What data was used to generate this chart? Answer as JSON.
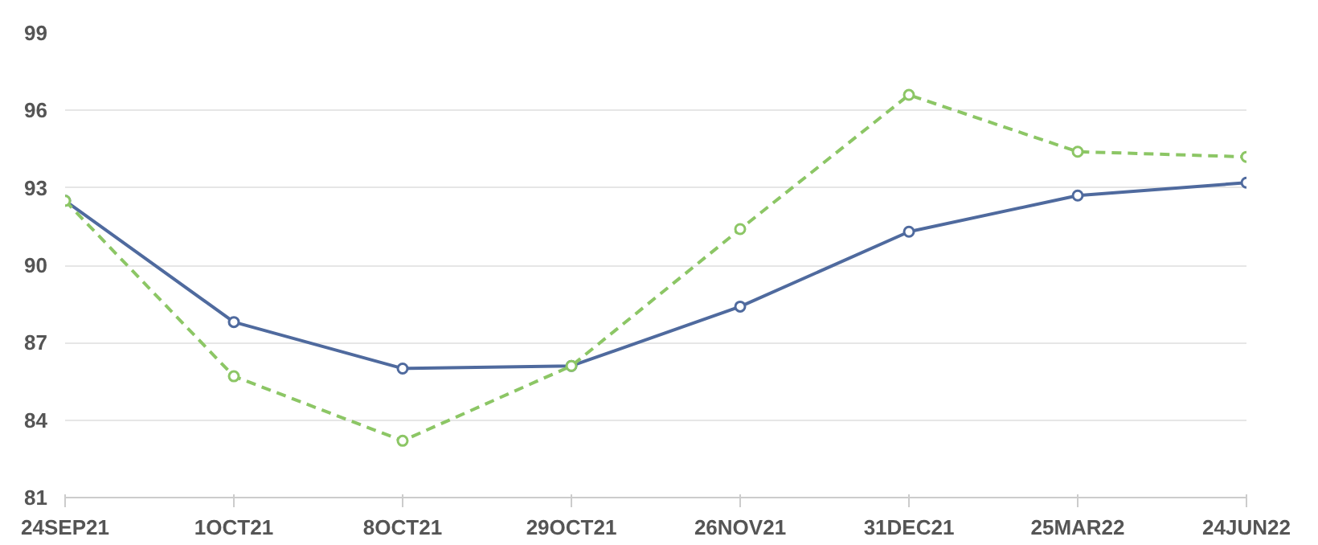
{
  "chart_data": {
    "type": "line",
    "categories": [
      "24SEP21",
      "1OCT21",
      "8OCT21",
      "29OCT21",
      "26NOV21",
      "31DEC21",
      "25MAR22",
      "24JUN22"
    ],
    "series": [
      {
        "color": "#4f6a9e",
        "values": [
          92.5,
          87.8,
          86.0,
          86.1,
          88.4,
          91.3,
          92.7,
          93.2
        ],
        "line_style": "solid"
      },
      {
        "color": "#8cc665",
        "values": [
          92.5,
          85.7,
          83.2,
          86.1,
          91.4,
          96.6,
          94.4,
          94.2
        ],
        "line_style": "dashed"
      }
    ],
    "ylim": [
      81,
      99
    ],
    "yticks": [
      81,
      84,
      87,
      90,
      93,
      96,
      99
    ],
    "grid": "y",
    "marker": "circle"
  }
}
